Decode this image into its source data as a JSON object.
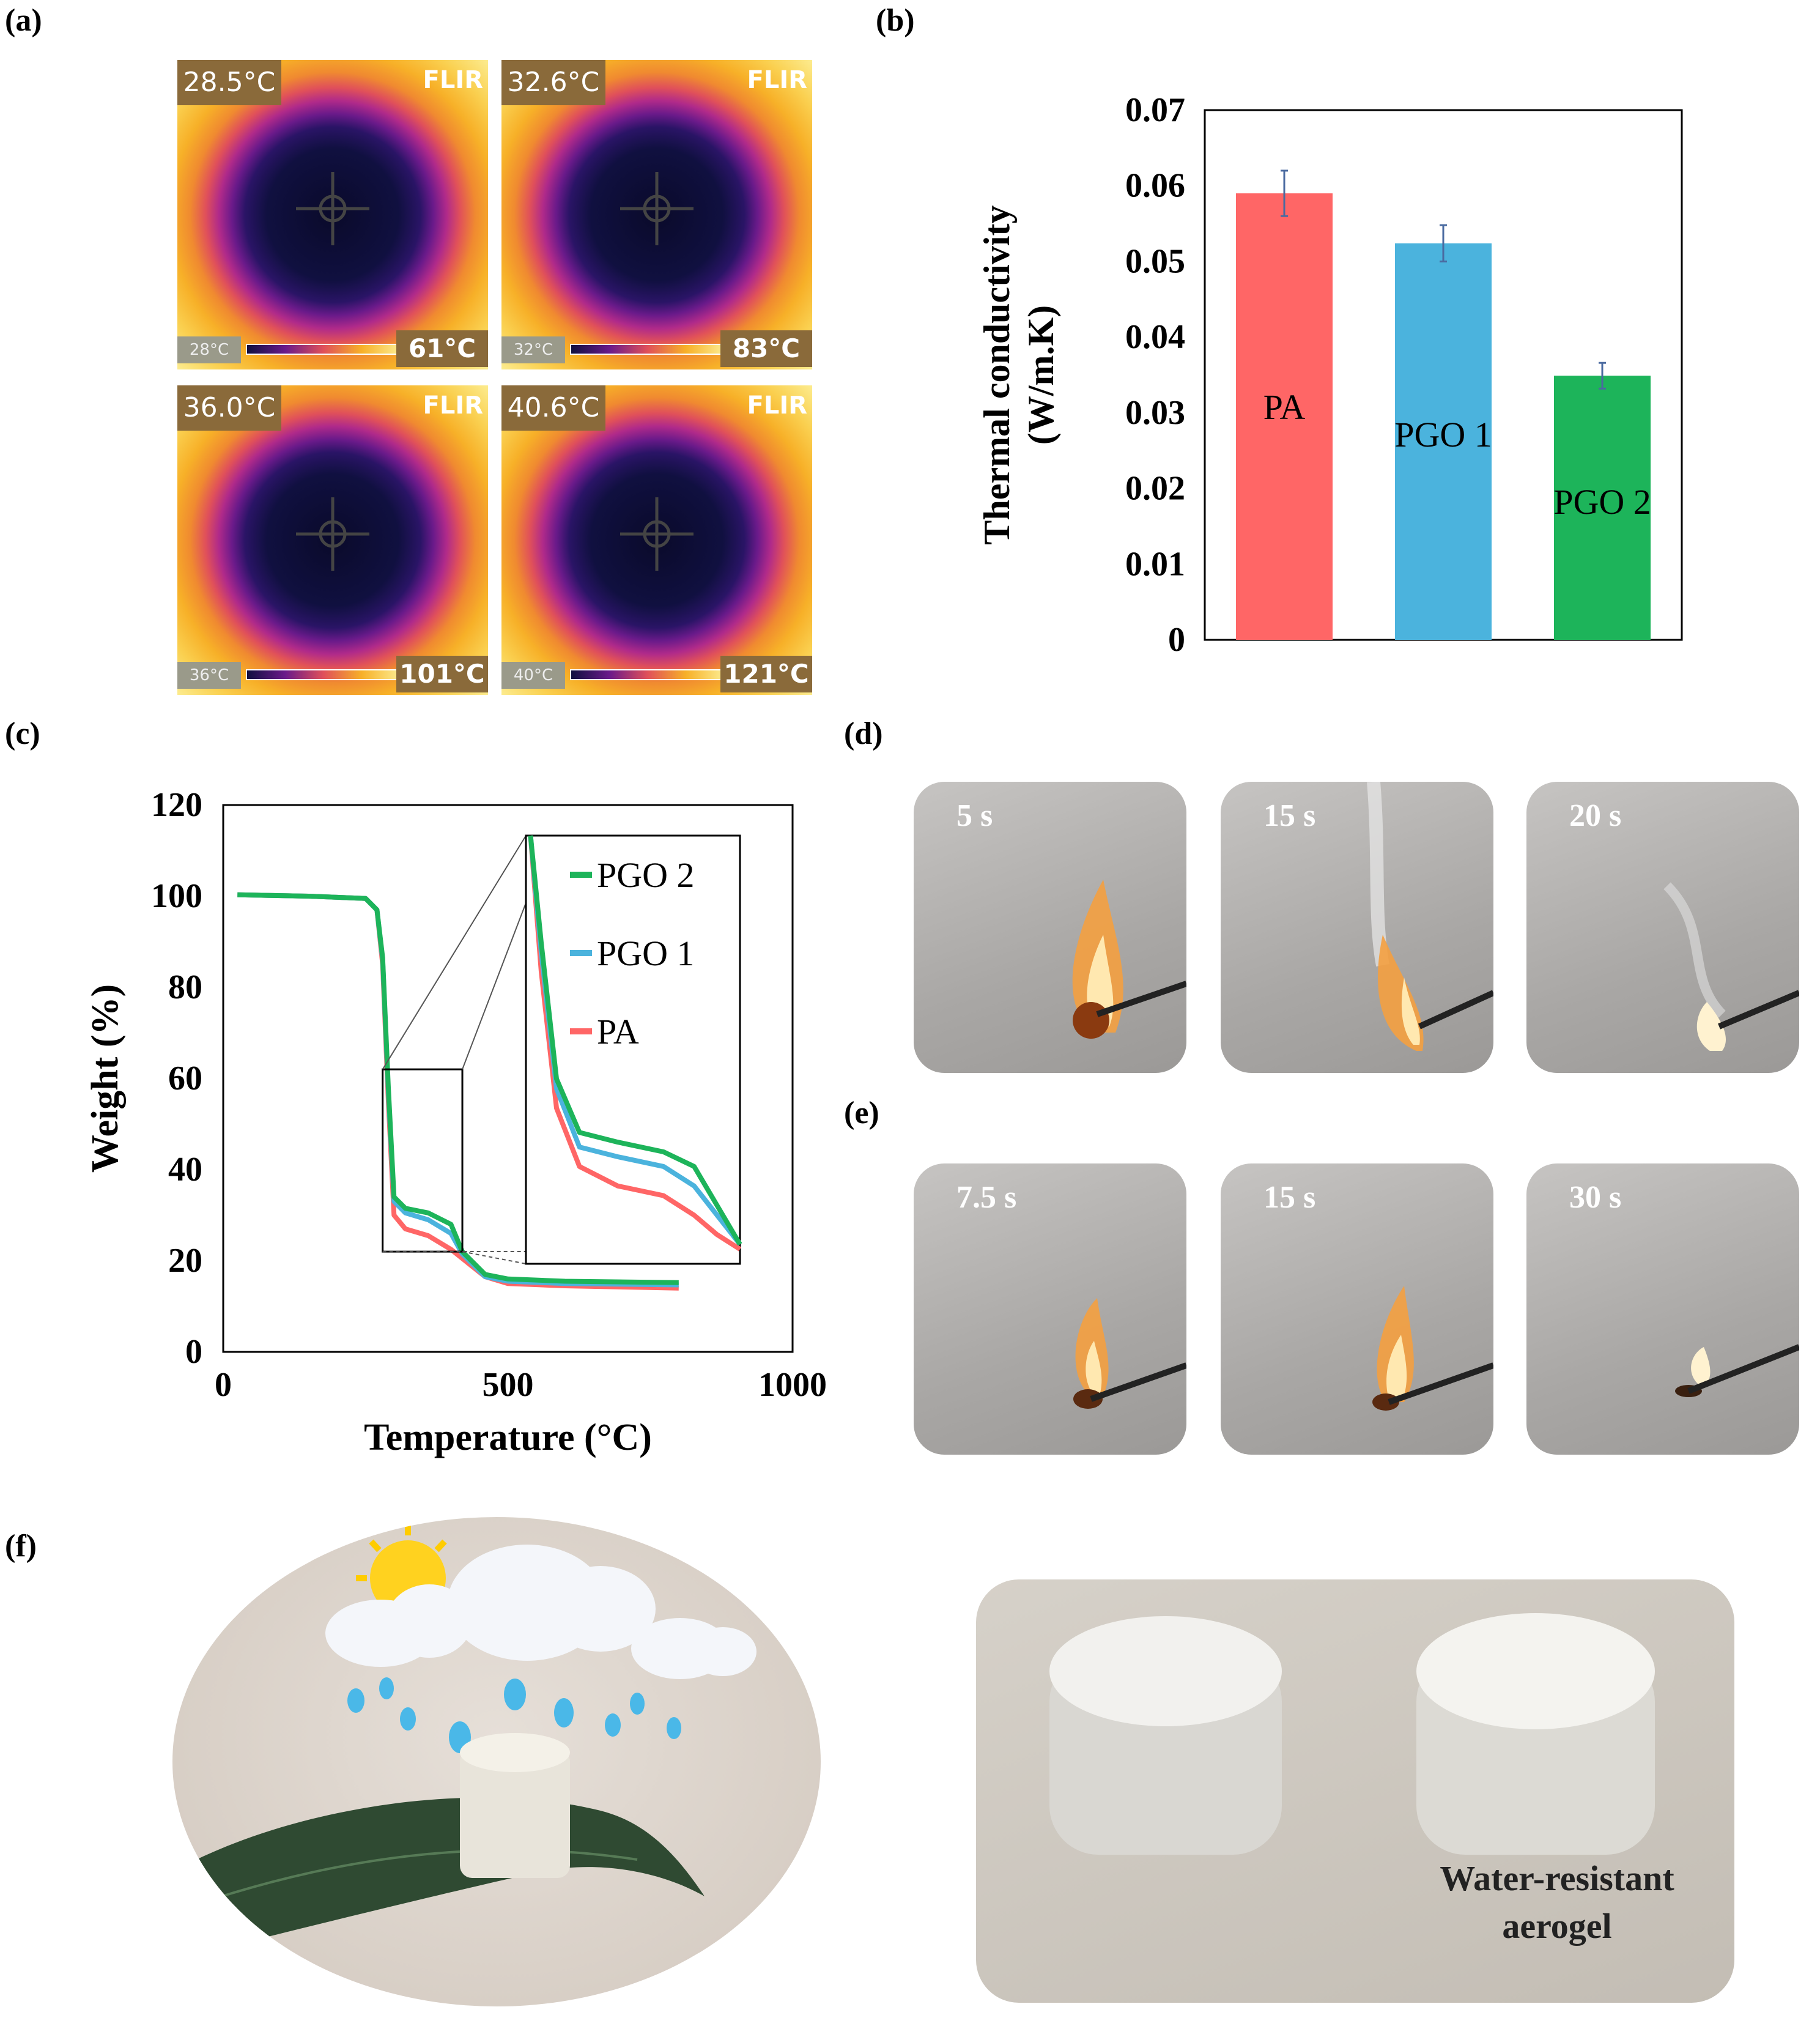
{
  "panels": {
    "a": "(a)",
    "b": "(b)",
    "c": "(c)",
    "d": "(d)",
    "e": "(e)",
    "f": "(f)"
  },
  "thermal_images": [
    {
      "center_temp": "28.5°C",
      "brand": "FLIR",
      "min": "28°C",
      "max": "61°C"
    },
    {
      "center_temp": "32.6°C",
      "brand": "FLIR",
      "min": "32°C",
      "max": "83°C"
    },
    {
      "center_temp": "36.0°C",
      "brand": "FLIR",
      "min": "36°C",
      "max": "101°C"
    },
    {
      "center_temp": "40.6°C",
      "brand": "FLIR",
      "min": "40°C",
      "max": "121°C"
    }
  ],
  "flame_d": [
    "5 s",
    "15 s",
    "20 s"
  ],
  "flame_e": [
    "7.5 s",
    "15 s",
    "30 s"
  ],
  "photo_f_caption_line1": "Water-resistant",
  "photo_f_caption_line2": "aerogel",
  "colors": {
    "pa": "#ff6666",
    "pgo1": "#4bb3dd",
    "pgo2": "#1db45a"
  },
  "chart_data": [
    {
      "type": "bar",
      "categories": [
        "PA",
        "PGO 1",
        "PGO 2"
      ],
      "values": [
        0.059,
        0.0524,
        0.0349
      ],
      "errors": [
        0.003,
        0.0024,
        0.0017
      ],
      "ylabel_line1": "Thermal conductivity",
      "ylabel_line2": "(W/m.K)",
      "ylim": [
        0,
        0.07
      ],
      "yticks": [
        "0",
        "0.01",
        "0.02",
        "0.03",
        "0.04",
        "0.05",
        "0.06",
        "0.07"
      ]
    },
    {
      "type": "line",
      "xlabel": "Temperature (°C)",
      "ylabel": "Weight (%)",
      "xlim": [
        0,
        1000
      ],
      "ylim": [
        0,
        120
      ],
      "xticks": [
        "0",
        "500",
        "1000"
      ],
      "yticks": [
        "0",
        "20",
        "40",
        "60",
        "80",
        "100",
        "120"
      ],
      "legend": [
        "PGO 2",
        "PGO 1",
        "PA"
      ],
      "series": [
        {
          "name": "PA",
          "x": [
            25,
            150,
            250,
            270,
            280,
            290,
            300,
            320,
            360,
            400,
            420,
            460,
            500,
            600,
            800
          ],
          "y": [
            100.3,
            100,
            99.5,
            97,
            85,
            55,
            30,
            27,
            25.5,
            22.5,
            20.5,
            16.5,
            15,
            14.5,
            14
          ]
        },
        {
          "name": "PGO 1",
          "x": [
            25,
            150,
            250,
            270,
            280,
            290,
            300,
            320,
            360,
            400,
            420,
            460,
            500,
            600,
            800
          ],
          "y": [
            100.3,
            100,
            99.5,
            97,
            86,
            57,
            33,
            30.5,
            29,
            26,
            21.5,
            16.5,
            15.5,
            15,
            14.7
          ]
        },
        {
          "name": "PGO 2",
          "x": [
            25,
            150,
            250,
            270,
            280,
            290,
            300,
            320,
            360,
            400,
            420,
            460,
            500,
            600,
            800
          ],
          "y": [
            100.3,
            100,
            99.5,
            97,
            86.5,
            58,
            34,
            31.5,
            30.5,
            28,
            22,
            17,
            16,
            15.5,
            15.2
          ]
        }
      ]
    }
  ]
}
